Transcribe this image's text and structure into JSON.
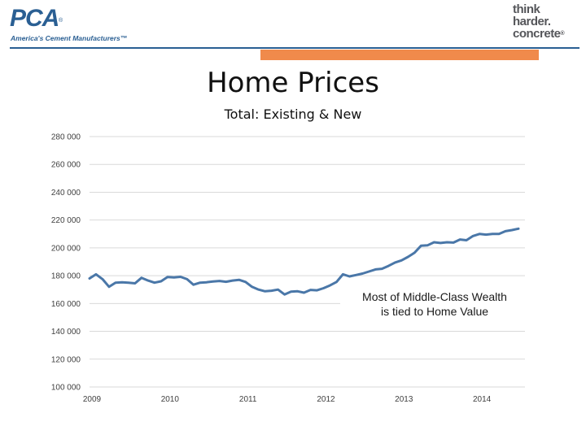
{
  "header": {
    "left_logo": {
      "mark": "PCA",
      "registered": "®",
      "tagline": "America's Cement Manufacturers™"
    },
    "right_logo": {
      "line1": "think",
      "line2": "harder.",
      "line3": "concrete",
      "trademark": "®"
    },
    "rule_color": "#2a5f93",
    "accent_color": "#f08a4b"
  },
  "title": "Home Prices",
  "subtitle": "Total: Existing & New",
  "annotation": {
    "line1": "Most of Middle-Class Wealth",
    "line2": "is tied to Home Value"
  },
  "chart_data": {
    "type": "line",
    "title": "Home Prices",
    "subtitle": "Total: Existing & New",
    "xlabel": "",
    "ylabel": "",
    "ylim": [
      100000,
      280000
    ],
    "xlim": [
      2009.0,
      2014.583
    ],
    "grid": true,
    "legend": "none",
    "line_color": "#4a77a8",
    "y_ticks": [
      {
        "value": 100000,
        "label": "100 000"
      },
      {
        "value": 120000,
        "label": "120 000"
      },
      {
        "value": 140000,
        "label": "140 000"
      },
      {
        "value": 160000,
        "label": "160 000"
      },
      {
        "value": 180000,
        "label": "180 000"
      },
      {
        "value": 200000,
        "label": "200 000"
      },
      {
        "value": 220000,
        "label": "220 000"
      },
      {
        "value": 240000,
        "label": "240 000"
      },
      {
        "value": 260000,
        "label": "260 000"
      },
      {
        "value": 280000,
        "label": "280 000"
      }
    ],
    "x_ticks": [
      {
        "value": 2009,
        "label": "2009"
      },
      {
        "value": 2010,
        "label": "2010"
      },
      {
        "value": 2011,
        "label": "2011"
      },
      {
        "value": 2012,
        "label": "2012"
      },
      {
        "value": 2013,
        "label": "2013"
      },
      {
        "value": 2014,
        "label": "2014"
      }
    ],
    "series": [
      {
        "x": [
          2009.0,
          2009.083,
          2009.167,
          2009.25,
          2009.333,
          2009.417,
          2009.5,
          2009.583,
          2009.667,
          2009.75,
          2009.833,
          2009.917,
          2010.0,
          2010.083,
          2010.167,
          2010.25,
          2010.333,
          2010.417,
          2010.5,
          2010.583,
          2010.667,
          2010.75,
          2010.833,
          2010.917,
          2011.0,
          2011.083,
          2011.167,
          2011.25,
          2011.333,
          2011.417,
          2011.5,
          2011.583,
          2011.667,
          2011.75,
          2011.833,
          2011.917,
          2012.0,
          2012.083,
          2012.167,
          2012.25,
          2012.333,
          2012.417,
          2012.5,
          2012.583,
          2012.667,
          2012.75,
          2012.833,
          2012.917,
          2013.0,
          2013.083,
          2013.167,
          2013.25,
          2013.333,
          2013.417,
          2013.5,
          2013.583,
          2013.667,
          2013.75,
          2013.833,
          2013.917,
          2014.0,
          2014.083,
          2014.167,
          2014.25,
          2014.333,
          2014.417,
          2014.5
        ],
        "values": [
          178000,
          181000,
          177500,
          172000,
          175000,
          175200,
          175000,
          174500,
          178500,
          176500,
          175000,
          176000,
          179000,
          178800,
          179200,
          177500,
          173500,
          175000,
          175300,
          175800,
          176200,
          175600,
          176500,
          177000,
          175500,
          172000,
          170000,
          168800,
          169200,
          170000,
          166500,
          168500,
          168800,
          167800,
          169800,
          169500,
          171000,
          173000,
          175500,
          181000,
          179500,
          180500,
          181500,
          183000,
          184500,
          185000,
          187000,
          189500,
          191000,
          193500,
          196500,
          201500,
          201800,
          204000,
          203500,
          204000,
          203800,
          206000,
          205500,
          208500,
          210000,
          209500,
          210000,
          210000,
          212000,
          212800,
          213800
        ]
      }
    ]
  }
}
